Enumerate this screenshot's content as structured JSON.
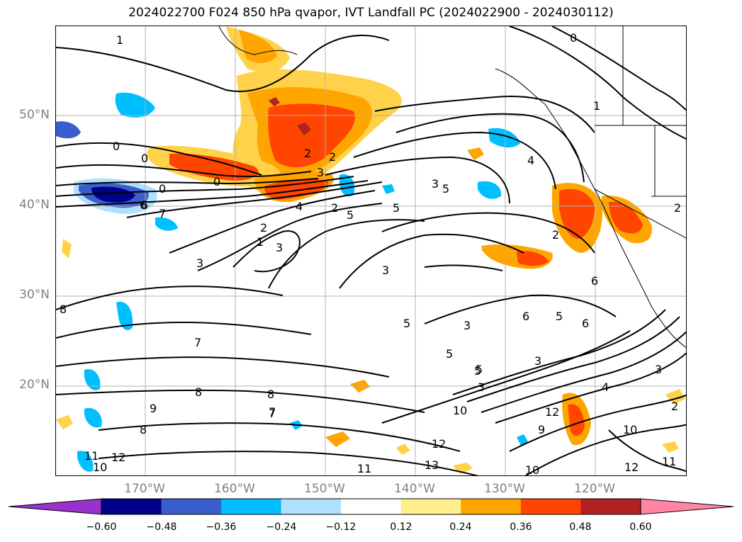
{
  "title": "2024022700 F024 850 hPa qvapor, IVT Landfall PC (2024022900 - 2024030112)",
  "lat_labels": [
    "50°N",
    "40°N",
    "30°N",
    "20°N"
  ],
  "lon_labels": [
    "170°W",
    "160°W",
    "150°W",
    "140°W",
    "130°W",
    "120°W"
  ],
  "colorbar": {
    "ticks": [
      "−0.60",
      "−0.48",
      "−0.36",
      "−0.24",
      "−0.12",
      "0.12",
      "0.24",
      "0.36",
      "0.48",
      "0.60"
    ],
    "colors": [
      "#9932cc",
      "#00008b",
      "#3a5fcd",
      "#00bfff",
      "#b0e0ff",
      "#ffffff",
      "#fff08c",
      "#ffa500",
      "#ff4500",
      "#b22222",
      "#ff85a2"
    ]
  },
  "contour_labels": [
    "1",
    "0",
    "0",
    "0",
    "0",
    "0",
    "1",
    "2",
    "2",
    "3",
    "2",
    "3",
    "4",
    "5",
    "6",
    "7",
    "5",
    "4",
    "2",
    "1",
    "3",
    "5",
    "3",
    "2",
    "3",
    "6",
    "6",
    "5",
    "3",
    "5",
    "5",
    "5",
    "6",
    "7",
    "8",
    "7",
    "8",
    "9",
    "8",
    "11",
    "10",
    "12",
    "11",
    "12",
    "13",
    "10",
    "12",
    "9",
    "10",
    "10",
    "12",
    "11",
    "3",
    "3",
    "4",
    "5",
    "3",
    "2",
    "2",
    "8",
    "6",
    "7"
  ]
}
